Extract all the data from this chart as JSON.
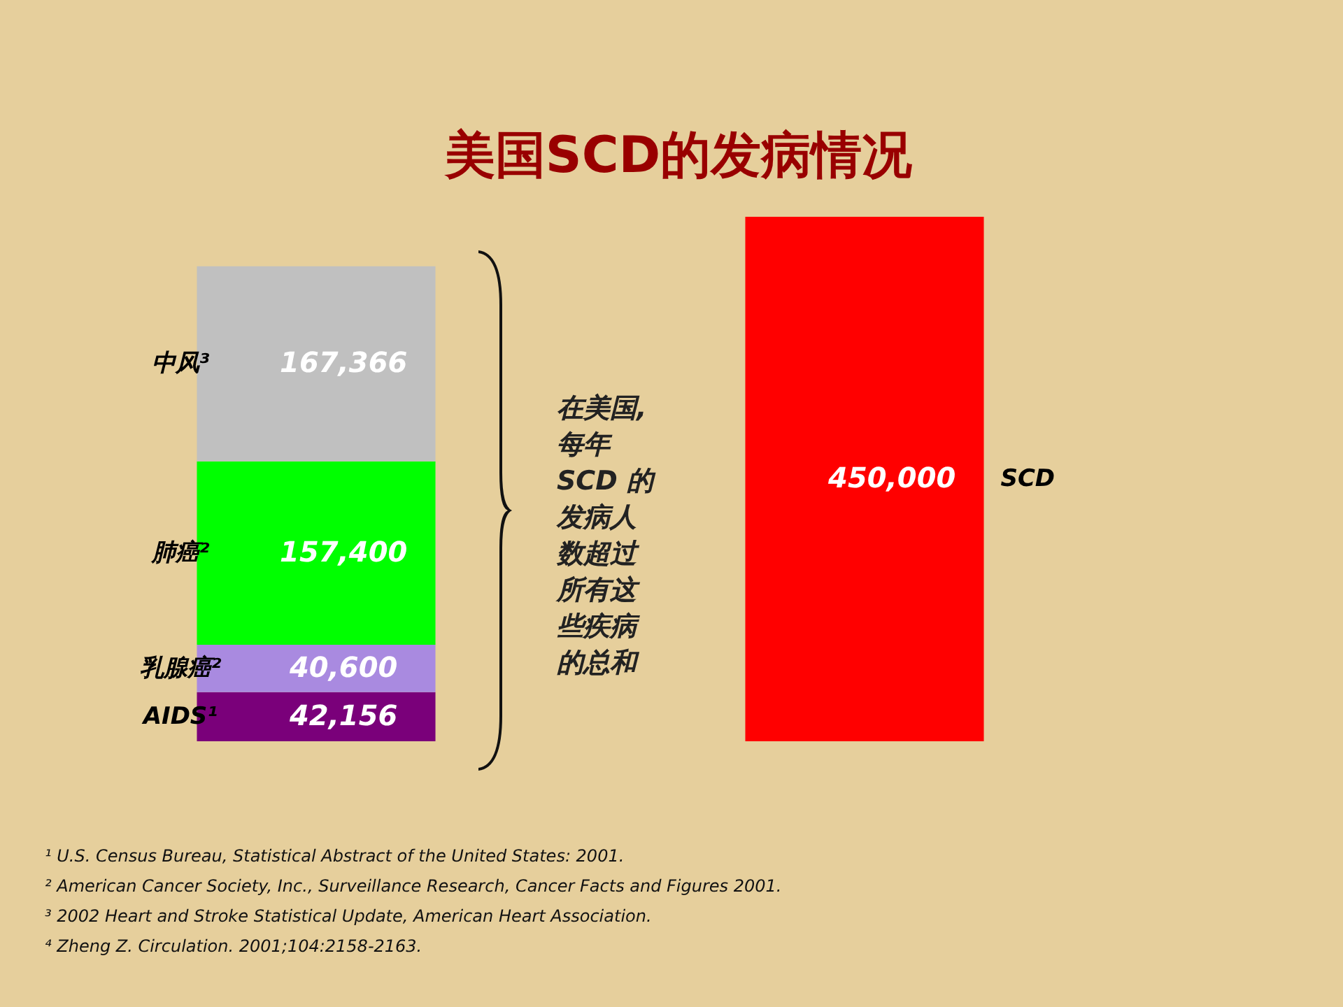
{
  "chart_data": {
    "type": "bar",
    "title": "美国SCD的发病情况",
    "categories": [
      null,
      null
    ],
    "stacked": true,
    "tick_labels": false,
    "series": [
      {
        "name": "AIDS¹",
        "color": "#7a007a",
        "values": [
          42156,
          null
        ],
        "value_labels": [
          "42,156",
          null
        ]
      },
      {
        "name": "乳腺癌²",
        "color": "#a98ae0",
        "values": [
          40600,
          null
        ],
        "value_labels": [
          "40,600",
          null
        ]
      },
      {
        "name": "肺癌²",
        "color": "#00ff00",
        "values": [
          157400,
          null
        ],
        "value_labels": [
          "157,400",
          null
        ]
      },
      {
        "name": "中风³",
        "color": "#c0c0c0",
        "values": [
          167366,
          null
        ],
        "value_labels": [
          "167,366",
          null
        ]
      },
      {
        "name": "SCD",
        "color": "#ff0000",
        "values": [
          null,
          450000
        ],
        "value_labels": [
          null,
          "450,000"
        ]
      }
    ],
    "annotations": [
      "在美国,每年SCD 的发病人数超过所有这些疾病的总和",
      "¹ U.S. Census Bureau, Statistical Abstract of the United States: 2001.",
      "² American Cancer Society, Inc., Surveillance Research, Cancer Facts and Figures 2001.",
      "³  2002 Heart and Stroke Statistical Update, American Heart Association.",
      "⁴ Zheng Z. Circulation. 2001;104:2158-2163."
    ]
  }
}
